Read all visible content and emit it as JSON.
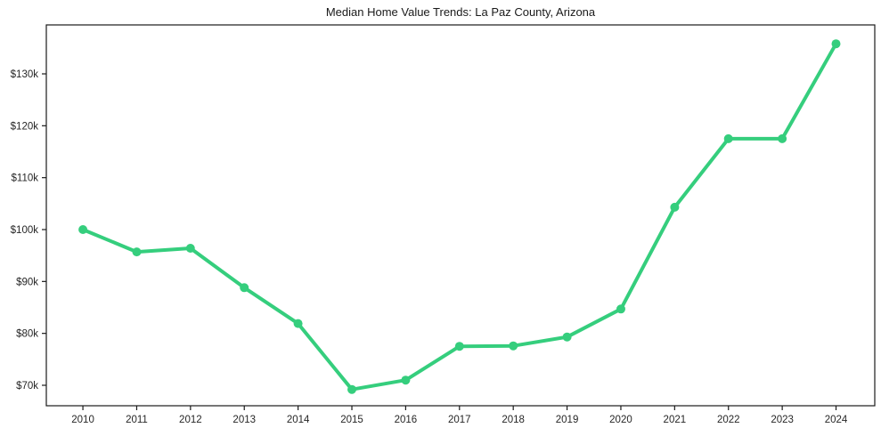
{
  "chart_data": {
    "type": "line",
    "title": "Median Home Value Trends: La Paz County, Arizona",
    "xlabel": "",
    "ylabel": "",
    "x": [
      2010,
      2011,
      2012,
      2013,
      2014,
      2015,
      2016,
      2017,
      2018,
      2019,
      2020,
      2021,
      2022,
      2023,
      2024
    ],
    "series": [
      {
        "name": "Median Home Value",
        "values": [
          100000,
          95700,
          96400,
          88800,
          81900,
          69200,
          71000,
          77500,
          77600,
          79300,
          84700,
          104300,
          117500,
          117500,
          135800
        ]
      }
    ],
    "xlim": [
      2009.32,
      2024.72
    ],
    "ylim": [
      66057,
      139429
    ],
    "yticks": [
      {
        "value": 70000,
        "label": "$70k"
      },
      {
        "value": 80000,
        "label": "$80k"
      },
      {
        "value": 90000,
        "label": "$90k"
      },
      {
        "value": 100000,
        "label": "$100k"
      },
      {
        "value": 110000,
        "label": "$110k"
      },
      {
        "value": 120000,
        "label": "$120k"
      },
      {
        "value": 130000,
        "label": "$130k"
      }
    ],
    "xticks": [
      "2010",
      "2011",
      "2012",
      "2013",
      "2014",
      "2015",
      "2016",
      "2017",
      "2018",
      "2019",
      "2020",
      "2021",
      "2022",
      "2023",
      "2024"
    ],
    "grid": false,
    "legend": "none",
    "marker": "circle",
    "colors": {
      "line": "#35ce7d",
      "axis": "#1a1a1a",
      "tick_text": "#262626",
      "background": "#ffffff"
    }
  }
}
